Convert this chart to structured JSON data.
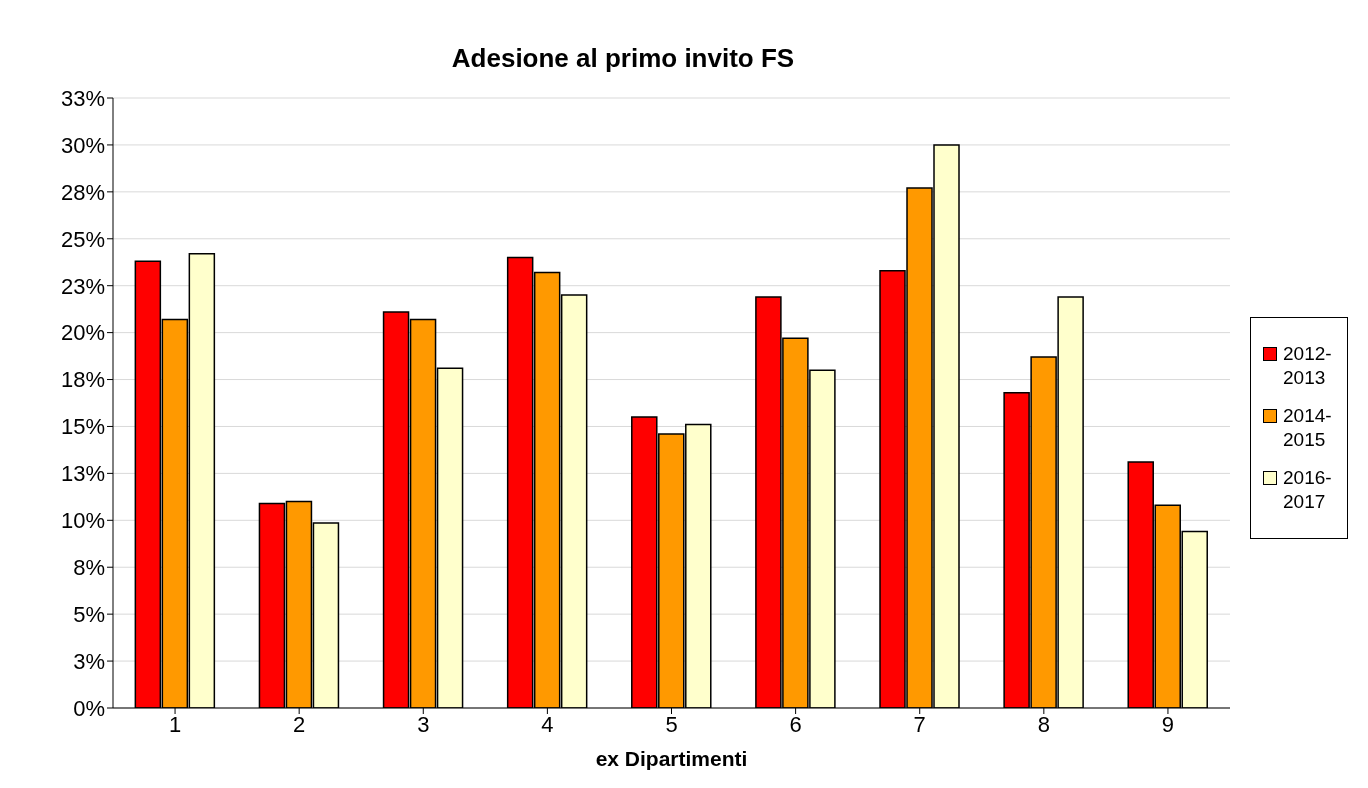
{
  "chart_data": {
    "type": "bar",
    "title": "Adesione al primo invito FS",
    "xlabel": "ex Dipartimenti",
    "categories": [
      "1",
      "2",
      "3",
      "4",
      "5",
      "6",
      "7",
      "8",
      "9"
    ],
    "series": [
      {
        "name": "2012-2013",
        "color": "#ff0000",
        "values": [
          23.8,
          10.9,
          21.1,
          24.0,
          15.5,
          21.9,
          23.3,
          16.8,
          13.1
        ]
      },
      {
        "name": "2014-2015",
        "color": "#ff9900",
        "values": [
          20.7,
          11.0,
          20.7,
          23.2,
          14.6,
          19.7,
          27.7,
          18.7,
          10.8
        ]
      },
      {
        "name": "2016-2017",
        "color": "#ffffcc",
        "values": [
          24.2,
          9.85,
          18.1,
          22.0,
          15.1,
          18.0,
          30.0,
          21.9,
          9.4
        ]
      }
    ],
    "ylim": [
      0,
      32.5
    ],
    "yticks": [
      {
        "value": 0,
        "label": "0%"
      },
      {
        "value": 2.5,
        "label": "3%"
      },
      {
        "value": 5,
        "label": "5%"
      },
      {
        "value": 7.5,
        "label": "8%"
      },
      {
        "value": 10,
        "label": "10%"
      },
      {
        "value": 12.5,
        "label": "13%"
      },
      {
        "value": 15,
        "label": "15%"
      },
      {
        "value": 17.5,
        "label": "18%"
      },
      {
        "value": 20,
        "label": "20%"
      },
      {
        "value": 22.5,
        "label": "23%"
      },
      {
        "value": 25,
        "label": "25%"
      },
      {
        "value": 27.5,
        "label": "28%"
      },
      {
        "value": 30,
        "label": "30%"
      },
      {
        "value": 32.5,
        "label": "33%"
      }
    ],
    "grid": "y",
    "legend": "right"
  }
}
